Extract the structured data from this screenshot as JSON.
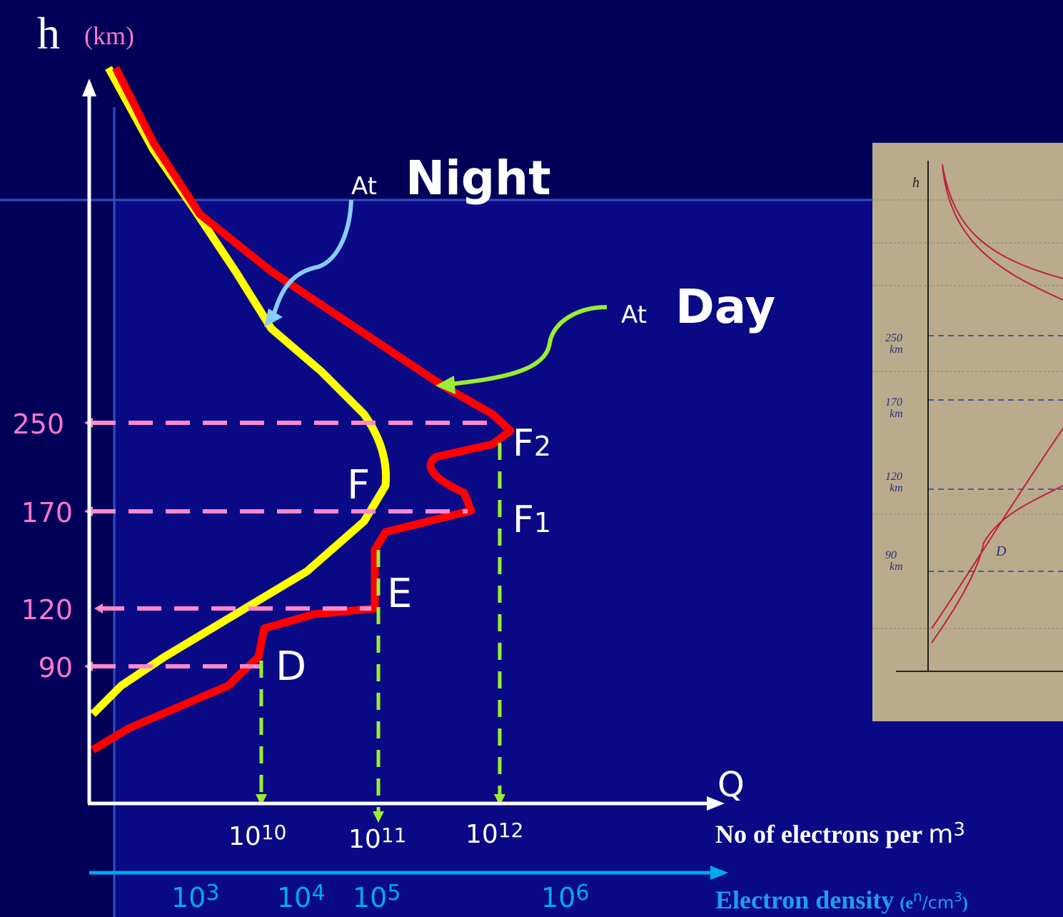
{
  "axes": {
    "y_label": "h",
    "y_unit": "(km)",
    "x_label": "Q"
  },
  "annotations": {
    "night_prefix": "At",
    "night": "Night",
    "day_prefix": "At",
    "day": "Day"
  },
  "height_ticks": [
    "250",
    "170",
    "120",
    "90"
  ],
  "layers": {
    "f2": {
      "letter": "F",
      "sub": "2"
    },
    "f1": {
      "letter": "F",
      "sub": "1"
    },
    "f": "F",
    "e": "E",
    "d": "D"
  },
  "q_ticks": [
    {
      "base": "10",
      "exp": "10"
    },
    {
      "base": "10",
      "exp": "11"
    },
    {
      "base": "10",
      "exp": "12"
    }
  ],
  "q_label": {
    "text": "No of electrons per",
    "unit": "m",
    "exp": "3"
  },
  "density_ticks": [
    {
      "base": "10",
      "exp": "3"
    },
    {
      "base": "10",
      "exp": "4"
    },
    {
      "base": "10",
      "exp": "5"
    },
    {
      "base": "10",
      "exp": "6"
    }
  ],
  "density_label": {
    "text": "Electron density",
    "unit_open": "(e",
    "unit_exp": "n",
    "unit_rest": "/cm",
    "unit_exp2": "3",
    "unit_close": ")"
  },
  "photo": {
    "h": "h",
    "labels": [
      {
        "num": "250",
        "unit": "km"
      },
      {
        "num": "170",
        "unit": "km"
      },
      {
        "num": "120",
        "unit": "km"
      },
      {
        "num": "90",
        "unit": "km"
      }
    ],
    "d": "D"
  }
}
